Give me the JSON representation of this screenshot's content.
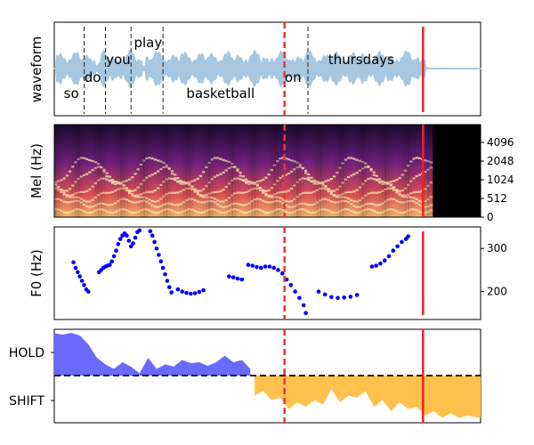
{
  "chart_data": [
    {
      "panel": "waveform",
      "type": "area",
      "ylabel": "waveform",
      "words": [
        {
          "text": "so",
          "t": 0.04
        },
        {
          "text": "do",
          "t": 0.09
        },
        {
          "text": "you",
          "t": 0.15
        },
        {
          "text": "play",
          "t": 0.22
        },
        {
          "text": "basketball",
          "t": 0.39
        },
        {
          "text": "on",
          "t": 0.56
        },
        {
          "text": "thursdays",
          "t": 0.72
        }
      ],
      "word_boundaries": [
        0.07,
        0.12,
        0.18,
        0.255,
        0.595
      ],
      "speech_end": 0.87,
      "series_color": "#a7c7e0"
    },
    {
      "panel": "mel",
      "type": "heatmap",
      "ylabel": "Mel (Hz)",
      "yticks": [
        "0",
        "512",
        "1024",
        "2048",
        "4096"
      ],
      "spectrogram_end": 0.88
    },
    {
      "panel": "f0",
      "type": "scatter",
      "ylabel": "F0 (Hz)",
      "yticks": [
        200,
        300
      ],
      "ylim": [
        135,
        350
      ],
      "color": "#0000ff",
      "segments": [
        {
          "x": [
            0.045,
            0.05,
            0.055,
            0.06,
            0.065,
            0.07,
            0.075,
            0.08
          ],
          "y": [
            268,
            255,
            245,
            235,
            225,
            215,
            205,
            200
          ]
        },
        {
          "x": [
            0.105,
            0.11,
            0.115,
            0.12,
            0.125,
            0.13,
            0.135,
            0.14,
            0.145,
            0.15,
            0.155,
            0.16,
            0.165,
            0.17,
            0.175,
            0.18,
            0.185,
            0.19,
            0.195,
            0.2
          ],
          "y": [
            245,
            250,
            255,
            258,
            260,
            262,
            270,
            282,
            295,
            310,
            322,
            330,
            335,
            330,
            318,
            305,
            312,
            325,
            338,
            342
          ]
        },
        {
          "x": [
            0.225,
            0.23,
            0.235,
            0.24,
            0.245,
            0.25,
            0.255,
            0.26,
            0.265,
            0.27,
            0.275
          ],
          "y": [
            340,
            330,
            315,
            300,
            285,
            270,
            255,
            240,
            225,
            210,
            198
          ]
        },
        {
          "x": [
            0.29,
            0.3,
            0.31,
            0.32,
            0.33,
            0.34,
            0.35
          ],
          "y": [
            205,
            200,
            197,
            195,
            196,
            199,
            203
          ]
        },
        {
          "x": [
            0.41,
            0.42,
            0.43,
            0.44
          ],
          "y": [
            235,
            233,
            230,
            228
          ]
        },
        {
          "x": [
            0.455,
            0.465,
            0.475,
            0.485,
            0.495,
            0.505,
            0.515,
            0.525,
            0.535,
            0.545,
            0.555,
            0.565,
            0.575,
            0.585,
            0.59
          ],
          "y": [
            262,
            260,
            257,
            255,
            258,
            258,
            255,
            250,
            242,
            228,
            215,
            200,
            185,
            168,
            150
          ]
        },
        {
          "x": [
            0.62,
            0.635,
            0.65,
            0.665,
            0.68,
            0.695,
            0.71
          ],
          "y": [
            200,
            193,
            187,
            185,
            186,
            188,
            192
          ]
        },
        {
          "x": [
            0.745,
            0.755,
            0.765,
            0.775,
            0.785,
            0.795,
            0.805,
            0.815,
            0.825,
            0.83
          ],
          "y": [
            258,
            260,
            265,
            272,
            282,
            295,
            305,
            315,
            322,
            328
          ]
        }
      ]
    },
    {
      "panel": "turn",
      "type": "area",
      "yticks": [
        "HOLD",
        "SHIFT"
      ],
      "hold_color": "#6a6aff",
      "shift_color": "#ffc04d",
      "hold": {
        "x": [
          0,
          0.02,
          0.04,
          0.06,
          0.08,
          0.1,
          0.12,
          0.14,
          0.16,
          0.18,
          0.2,
          0.22,
          0.24,
          0.26,
          0.28,
          0.3,
          0.32,
          0.34,
          0.36,
          0.38,
          0.4,
          0.42,
          0.44,
          0.46
        ],
        "y": [
          0.95,
          0.92,
          0.96,
          0.9,
          0.7,
          0.4,
          0.25,
          0.15,
          0.3,
          0.2,
          0.05,
          0.4,
          0.15,
          0.25,
          0.2,
          0.35,
          0.28,
          0.3,
          0.22,
          0.3,
          0.45,
          0.3,
          0.35,
          0.15
        ]
      },
      "shift": {
        "x": [
          0.47,
          0.49,
          0.51,
          0.53,
          0.55,
          0.57,
          0.59,
          0.61,
          0.63,
          0.65,
          0.67,
          0.69,
          0.71,
          0.73,
          0.75,
          0.77,
          0.79,
          0.81,
          0.83,
          0.85,
          0.87,
          0.89,
          0.91,
          0.93,
          0.95,
          0.97,
          1.0
        ],
        "y": [
          -0.45,
          -0.35,
          -0.55,
          -0.5,
          -0.75,
          -0.6,
          -0.7,
          -0.55,
          -0.65,
          -0.3,
          -0.6,
          -0.45,
          -0.5,
          -0.35,
          -0.7,
          -0.55,
          -0.8,
          -0.6,
          -0.75,
          -0.7,
          -0.9,
          -0.8,
          -0.95,
          -0.85,
          -0.95,
          -0.9,
          -0.95
        ]
      }
    }
  ],
  "markers": {
    "current_time": 0.54,
    "end_time": 0.865,
    "color": "#ee2222"
  }
}
